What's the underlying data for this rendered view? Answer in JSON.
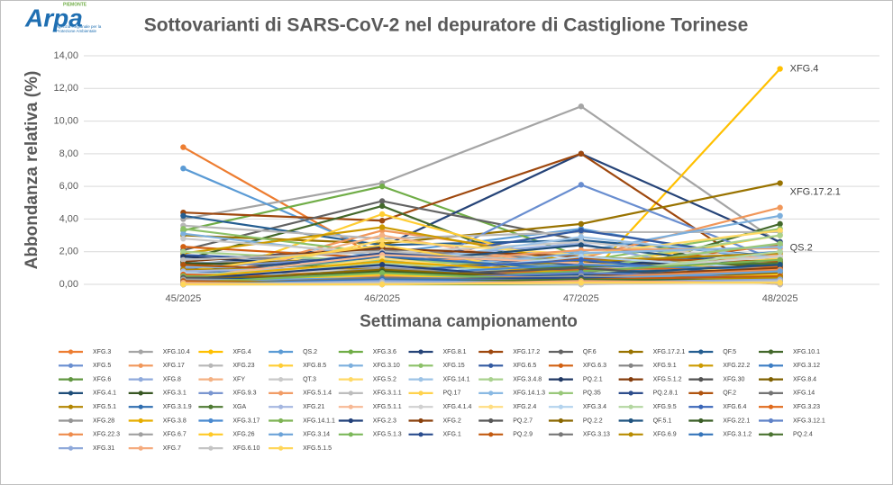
{
  "logo": {
    "name": "Arpa",
    "region": "PIEMONTE",
    "subtitle": "Agenzia Regionale per la Protezione Ambientale"
  },
  "chart_data": {
    "type": "line",
    "title": "Sottovarianti di SARS-CoV-2 nel depuratore di Castiglione Torinese",
    "x_label": "Settimana campionamento",
    "y_label": "Abbondanza relativa (%)",
    "categories": [
      "45/2025",
      "46/2025",
      "47/2025",
      "48/2025"
    ],
    "ylim": [
      0,
      14
    ],
    "yticks": [
      {
        "value": 0,
        "label": "0,00"
      },
      {
        "value": 2,
        "label": "2,00"
      },
      {
        "value": 4,
        "label": "4,00"
      },
      {
        "value": 6,
        "label": "6,00"
      },
      {
        "value": 8,
        "label": "8,00"
      },
      {
        "value": 10,
        "label": "10,00"
      },
      {
        "value": 12,
        "label": "12,00"
      },
      {
        "value": 14,
        "label": "14,00"
      }
    ],
    "grid": true,
    "legend": "bottom",
    "end_labels": [
      2,
      3,
      8
    ],
    "series": [
      {
        "name": "XFG.3",
        "color": "#ED7D31",
        "values": [
          8.4,
          1.5,
          1.2,
          0
        ]
      },
      {
        "name": "XFG.10.4",
        "color": "#A5A5A5",
        "values": [
          4.0,
          6.2,
          10.9,
          2.5
        ]
      },
      {
        "name": "XFG.4",
        "color": "#FFC000",
        "values": [
          0,
          1.1,
          0,
          13.2
        ]
      },
      {
        "name": "QS.2",
        "color": "#5B9BD5",
        "values": [
          7.1,
          1.9,
          3.4,
          1.3
        ]
      },
      {
        "name": "XFG.3.6",
        "color": "#70AD47",
        "values": [
          3.3,
          6.0,
          1.7,
          1.1
        ]
      },
      {
        "name": "XFG.8.1",
        "color": "#264478",
        "values": [
          1.4,
          2.3,
          8.0,
          2.6
        ]
      },
      {
        "name": "XFG.17.2",
        "color": "#9E480E",
        "values": [
          4.4,
          3.9,
          8.0,
          0
        ]
      },
      {
        "name": "QF.6",
        "color": "#636363",
        "values": [
          2.1,
          5.1,
          2.7,
          1.0
        ]
      },
      {
        "name": "XFG.17.2.1",
        "color": "#997300",
        "values": [
          3.0,
          2.5,
          3.7,
          6.2
        ]
      },
      {
        "name": "QF.5",
        "color": "#255E91",
        "values": [
          4.2,
          2.4,
          2.7,
          1.7
        ]
      },
      {
        "name": "XFG.10.1",
        "color": "#43682B",
        "values": [
          1.5,
          4.8,
          0.1,
          3.7
        ]
      },
      {
        "name": "XFG.5",
        "color": "#698ED0",
        "values": [
          1.1,
          0,
          6.1,
          1.4
        ]
      },
      {
        "name": "XFG.17",
        "color": "#F1975A",
        "values": [
          0,
          3.3,
          1.6,
          4.7
        ]
      },
      {
        "name": "XFG.23",
        "color": "#B7B7B7",
        "values": [
          3.6,
          2.8,
          3.2,
          3.2
        ]
      },
      {
        "name": "XFG.8.5",
        "color": "#FFCD33",
        "values": [
          0,
          4.3,
          1.0,
          3.0
        ]
      },
      {
        "name": "XFG.3.10",
        "color": "#7CAFDD",
        "values": [
          3.1,
          1.7,
          2.0,
          4.2
        ]
      },
      {
        "name": "XFG.15",
        "color": "#8CC168",
        "values": [
          3.4,
          1.9,
          1.4,
          3.4
        ]
      },
      {
        "name": "XFG.6.5",
        "color": "#335AA1",
        "values": [
          1.8,
          1.3,
          3.3,
          1.5
        ]
      },
      {
        "name": "XFG.6.3",
        "color": "#D26012",
        "values": [
          2.3,
          1.6,
          1.0,
          2.4
        ]
      },
      {
        "name": "XFG.9.1",
        "color": "#848484",
        "values": [
          1.2,
          2.1,
          1.5,
          1.2
        ]
      },
      {
        "name": "XFG.22.2",
        "color": "#CC9A00",
        "values": [
          1.9,
          3.5,
          1.3,
          1.0
        ]
      },
      {
        "name": "XFG.3.12",
        "color": "#3C7DC4",
        "values": [
          1.0,
          1.8,
          1.1,
          2.0
        ]
      },
      {
        "name": "XFG.6",
        "color": "#609640",
        "values": [
          0,
          0,
          0,
          1.2
        ]
      },
      {
        "name": "XFG.8",
        "color": "#8FAADC",
        "values": [
          1.3,
          1.5,
          2.5,
          0
        ]
      },
      {
        "name": "XFY",
        "color": "#F4B183",
        "values": [
          0,
          3.0,
          0.9,
          1.8
        ]
      },
      {
        "name": "QT.3",
        "color": "#C9C9C9",
        "values": [
          2.8,
          1.9,
          2.6,
          1.4
        ]
      },
      {
        "name": "XFG.5.2",
        "color": "#FFD966",
        "values": [
          0,
          2.7,
          1.8,
          3.3
        ]
      },
      {
        "name": "XFG.14.1",
        "color": "#9DC3E6",
        "values": [
          1.6,
          1.2,
          2.9,
          1.6
        ]
      },
      {
        "name": "XFG.3.4.8",
        "color": "#A9D18E",
        "values": [
          2.0,
          1.4,
          1.2,
          3.0
        ]
      },
      {
        "name": "PQ.2.1",
        "color": "#203864",
        "values": [
          1.7,
          0.9,
          1.4,
          1.1
        ]
      },
      {
        "name": "XFG.5.1.2",
        "color": "#843C0C",
        "values": [
          1.4,
          2.2,
          1.7,
          0.9
        ]
      },
      {
        "name": "XFG.30",
        "color": "#525252",
        "values": [
          0,
          1.0,
          0.6,
          1.5
        ]
      },
      {
        "name": "XFG.8.4",
        "color": "#7F6000",
        "values": [
          1.2,
          1.6,
          0.8,
          1.3
        ]
      },
      {
        "name": "XFG.4.1",
        "color": "#1F4E79",
        "values": [
          0.9,
          1.3,
          2.4,
          1.0
        ]
      },
      {
        "name": "XFG.3.1",
        "color": "#385723",
        "values": [
          1.3,
          1.1,
          0.5,
          0.9
        ]
      },
      {
        "name": "XFG.9.3",
        "color": "#7A96D0",
        "values": [
          1.0,
          1.7,
          1.0,
          0.8
        ]
      },
      {
        "name": "XFG.5.1.4",
        "color": "#F19C66",
        "values": [
          0,
          1.2,
          2.1,
          2.2
        ]
      },
      {
        "name": "XFG.3.1.1",
        "color": "#BDBDBD",
        "values": [
          1.5,
          2.0,
          1.3,
          0
        ]
      },
      {
        "name": "PQ.17",
        "color": "#FFD24D",
        "values": [
          0.8,
          2.4,
          0.4,
          1.6
        ]
      },
      {
        "name": "XFG.14.1.3",
        "color": "#8AB9E3",
        "values": [
          1.1,
          0.8,
          1.9,
          2.3
        ]
      },
      {
        "name": "PQ.35",
        "color": "#99C87A",
        "values": [
          0.7,
          1.5,
          1.0,
          2.5
        ]
      },
      {
        "name": "PQ.2.8.1",
        "color": "#2E4E8C",
        "values": [
          0.6,
          1.9,
          1.2,
          0.7
        ]
      },
      {
        "name": "QF.2",
        "color": "#B0540F",
        "values": [
          1.2,
          0.7,
          1.6,
          1.4
        ]
      },
      {
        "name": "XFG.14",
        "color": "#747474",
        "values": [
          0,
          1.4,
          0.7,
          1.1
        ]
      },
      {
        "name": "XFG.5.1",
        "color": "#B38600",
        "values": [
          0.9,
          1.0,
          1.4,
          1.9
        ]
      },
      {
        "name": "XFG.3.1.9",
        "color": "#2F6EB0",
        "values": [
          0.5,
          1.7,
          0.9,
          0.6
        ]
      },
      {
        "name": "XGA",
        "color": "#4E7A32",
        "values": [
          0,
          0.6,
          1.1,
          1.3
        ]
      },
      {
        "name": "XFG.21",
        "color": "#A4B6E0",
        "values": [
          0.8,
          1.1,
          0.5,
          1.0
        ]
      },
      {
        "name": "XFG.5.1.1",
        "color": "#F7B894",
        "values": [
          0.4,
          1.8,
          1.3,
          0.5
        ]
      },
      {
        "name": "XFG.4.1.4",
        "color": "#D0D0D0",
        "values": [
          0.6,
          0.9,
          0.8,
          1.7
        ]
      },
      {
        "name": "XFG.2.4",
        "color": "#FFDD80",
        "values": [
          0,
          1.6,
          0.3,
          1.2
        ]
      },
      {
        "name": "XFG.3.4",
        "color": "#B3D3EE",
        "values": [
          0.7,
          0.5,
          1.7,
          0.9
        ]
      },
      {
        "name": "XFG.9.5",
        "color": "#B3D6A0",
        "values": [
          0.5,
          1.3,
          0.6,
          2.0
        ]
      },
      {
        "name": "XFG.6.4",
        "color": "#3A66B8",
        "values": [
          0.3,
          0.8,
          1.5,
          0.4
        ]
      },
      {
        "name": "XFG.3.23",
        "color": "#E06A1C",
        "values": [
          0.6,
          0.4,
          0.9,
          1.1
        ]
      },
      {
        "name": "XFG.28",
        "color": "#959595",
        "values": [
          0,
          1.0,
          0.4,
          0.8
        ]
      },
      {
        "name": "XFG.3.8",
        "color": "#E6AD00",
        "values": [
          0.4,
          1.4,
          0.7,
          0.3
        ]
      },
      {
        "name": "XFG.3.17",
        "color": "#4A8AD0",
        "values": [
          0.2,
          0.6,
          1.2,
          0.9
        ]
      },
      {
        "name": "XFG.14.1.1",
        "color": "#7EB354",
        "values": [
          0.5,
          0.3,
          0.8,
          1.5
        ]
      },
      {
        "name": "XFG.2.3",
        "color": "#22407A",
        "values": [
          0.3,
          1.2,
          0.2,
          0.6
        ]
      },
      {
        "name": "XFG.2",
        "color": "#8A400C",
        "values": [
          0,
          0.7,
          0.5,
          1.0
        ]
      },
      {
        "name": "PQ.2.7",
        "color": "#575757",
        "values": [
          0.4,
          0.5,
          1.0,
          0.2
        ]
      },
      {
        "name": "PQ.2.2",
        "color": "#8A6700",
        "values": [
          0.2,
          0.9,
          0.3,
          0.7
        ]
      },
      {
        "name": "QF.5.1",
        "color": "#205480",
        "values": [
          0.3,
          0.4,
          0.6,
          1.2
        ]
      },
      {
        "name": "XFG.22.1",
        "color": "#3B5E26",
        "values": [
          0,
          0.8,
          0.2,
          0.5
        ]
      },
      {
        "name": "XFG.3.12.1",
        "color": "#5F82C8",
        "values": [
          0.2,
          0.3,
          0.7,
          0.4
        ]
      },
      {
        "name": "XFG.22.3",
        "color": "#EE8C4C",
        "values": [
          0,
          0.5,
          0.4,
          0.9
        ]
      },
      {
        "name": "XFG.6.7",
        "color": "#A0A0A0",
        "values": [
          0.3,
          0.2,
          0.5,
          0.3
        ]
      },
      {
        "name": "XFG.26",
        "color": "#FFC926",
        "values": [
          0,
          0.6,
          0.1,
          0.6
        ]
      },
      {
        "name": "XFG.3.14",
        "color": "#6CA3D8",
        "values": [
          0.2,
          0.4,
          0.3,
          0.8
        ]
      },
      {
        "name": "XFG.5.1.3",
        "color": "#7CB85A",
        "values": [
          0.1,
          0.7,
          0.2,
          0.4
        ]
      },
      {
        "name": "XFG.1",
        "color": "#2A4D8E",
        "values": [
          0,
          0.3,
          0.4,
          0.2
        ]
      },
      {
        "name": "PQ.2.9",
        "color": "#C25A10",
        "values": [
          0.2,
          0.1,
          0.3,
          0.5
        ]
      },
      {
        "name": "XFG.3.13",
        "color": "#777777",
        "values": [
          0,
          0.4,
          0.2,
          0.3
        ]
      },
      {
        "name": "XFG.6.9",
        "color": "#B88C00",
        "values": [
          0.1,
          0.2,
          0.1,
          0.4
        ]
      },
      {
        "name": "XFG.3.1.2",
        "color": "#3575BA",
        "values": [
          0,
          0.3,
          0.2,
          0.1
        ]
      },
      {
        "name": "PQ.2.4",
        "color": "#4A7330",
        "values": [
          0.1,
          0.1,
          0.3,
          0.2
        ]
      },
      {
        "name": "XFG.31",
        "color": "#8FA9DA",
        "values": [
          0,
          0.2,
          0.1,
          0.3
        ]
      },
      {
        "name": "XFG.7",
        "color": "#F5AB7E",
        "values": [
          0.1,
          0,
          0.2,
          0.1
        ]
      },
      {
        "name": "XFG.6.10",
        "color": "#C4C4C4",
        "values": [
          0,
          0.1,
          0,
          0.2
        ]
      },
      {
        "name": "XFG.5.1.5",
        "color": "#FFD65A",
        "values": [
          0,
          0,
          0.1,
          0.1
        ]
      }
    ]
  }
}
